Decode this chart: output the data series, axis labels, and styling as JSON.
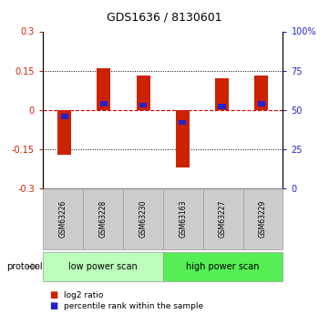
{
  "title": "GDS1636 / 8130601",
  "samples": [
    "GSM63226",
    "GSM63228",
    "GSM63230",
    "GSM63163",
    "GSM63227",
    "GSM63229"
  ],
  "log2_values": [
    -0.17,
    0.16,
    0.13,
    -0.22,
    0.12,
    0.13
  ],
  "percentile_values": [
    46,
    54,
    53,
    42,
    52,
    54
  ],
  "bar_width": 0.35,
  "ylim_left": [
    -0.3,
    0.3
  ],
  "ylim_right": [
    0,
    100
  ],
  "yticks_left": [
    -0.3,
    -0.15,
    0.0,
    0.15,
    0.3
  ],
  "yticks_right": [
    0,
    25,
    50,
    75,
    100
  ],
  "ytick_labels_right": [
    "0",
    "25",
    "50",
    "75",
    "100%"
  ],
  "ytick_labels_left": [
    "-0.3",
    "-0.15",
    "0",
    "0.15",
    "0.3"
  ],
  "red_color": "#cc2200",
  "blue_color": "#2222cc",
  "protocol_groups": [
    {
      "label": "low power scan",
      "count": 3,
      "color": "#bbffbb"
    },
    {
      "label": "high power scan",
      "count": 3,
      "color": "#55ee55"
    }
  ],
  "sample_box_color": "#cccccc",
  "dashed_zero_color": "#cc0000",
  "bg_color": "#ffffff"
}
